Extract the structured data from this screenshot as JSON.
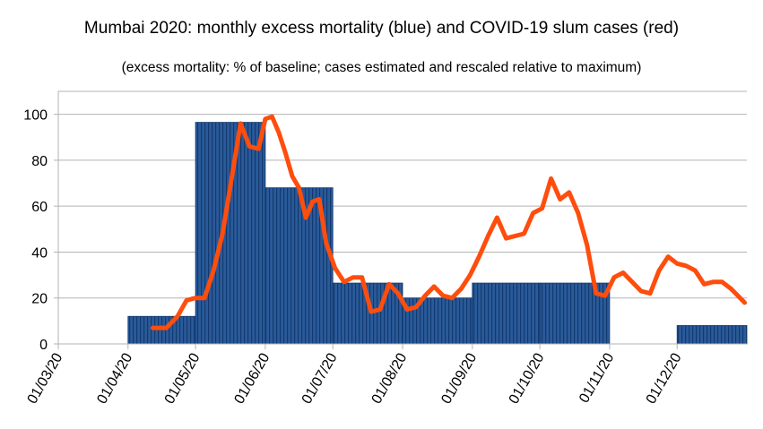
{
  "chart_data": {
    "type": "bar+line",
    "title": "Mumbai 2020: monthly excess mortality (blue) and COVID-19 slum cases (red)",
    "subtitle": "(excess mortality: % of baseline; cases estimated and rescaled relative to maximum)",
    "xlabel": "",
    "ylabel": "",
    "ylim": [
      0,
      110
    ],
    "yticks": [
      0,
      20,
      40,
      60,
      80,
      100
    ],
    "xticks": [
      "01/03/20",
      "01/04/20",
      "01/05/20",
      "01/06/20",
      "01/07/20",
      "01/08/20",
      "01/09/20",
      "01/10/20",
      "01/11/20",
      "01/12/20"
    ],
    "grid": true,
    "excess_mortality": {
      "color": "#1f4e8c",
      "months": [
        "2020-03",
        "2020-04",
        "2020-05",
        "2020-06",
        "2020-07",
        "2020-08",
        "2020-09",
        "2020-10",
        "2020-11",
        "2020-12"
      ],
      "values": [
        0,
        12,
        96.5,
        68,
        26.5,
        20,
        26.5,
        26.5,
        0,
        8
      ]
    },
    "slum_cases": {
      "color": "#ff4d0d",
      "dates": [
        "2020-04-12",
        "2020-04-18",
        "2020-04-23",
        "2020-04-27",
        "2020-05-01",
        "2020-05-05",
        "2020-05-09",
        "2020-05-13",
        "2020-05-17",
        "2020-05-21",
        "2020-05-25",
        "2020-05-29",
        "2020-06-01",
        "2020-06-04",
        "2020-06-07",
        "2020-06-10",
        "2020-06-13",
        "2020-06-16",
        "2020-06-19",
        "2020-06-22",
        "2020-06-25",
        "2020-06-28",
        "2020-07-02",
        "2020-07-06",
        "2020-07-10",
        "2020-07-14",
        "2020-07-18",
        "2020-07-22",
        "2020-07-26",
        "2020-07-30",
        "2020-08-03",
        "2020-08-07",
        "2020-08-11",
        "2020-08-15",
        "2020-08-19",
        "2020-08-23",
        "2020-08-27",
        "2020-08-31",
        "2020-09-04",
        "2020-09-08",
        "2020-09-12",
        "2020-09-16",
        "2020-09-20",
        "2020-09-24",
        "2020-09-28",
        "2020-10-02",
        "2020-10-06",
        "2020-10-10",
        "2020-10-14",
        "2020-10-18",
        "2020-10-22",
        "2020-10-26",
        "2020-10-30",
        "2020-11-03",
        "2020-11-07",
        "2020-11-11",
        "2020-11-15",
        "2020-11-19",
        "2020-11-23",
        "2020-11-27",
        "2020-12-01",
        "2020-12-05",
        "2020-12-09",
        "2020-12-13",
        "2020-12-17",
        "2020-12-21",
        "2020-12-25",
        "2020-12-29",
        "2020-12-31"
      ],
      "values": [
        7,
        7,
        12,
        19,
        20,
        20,
        32,
        48,
        72,
        96,
        86,
        85,
        98,
        99,
        92,
        83,
        73,
        68,
        55,
        62,
        63,
        44,
        33,
        27,
        29,
        29,
        14,
        15,
        26,
        22,
        15,
        16,
        21,
        25,
        21,
        20,
        24,
        30,
        38,
        47,
        55,
        46,
        47,
        48,
        57,
        59,
        72,
        63,
        66,
        57,
        43,
        22,
        21,
        29,
        31,
        27,
        23,
        22,
        32,
        38,
        35,
        34,
        32,
        26,
        27,
        27,
        24,
        20,
        18
      ]
    }
  }
}
